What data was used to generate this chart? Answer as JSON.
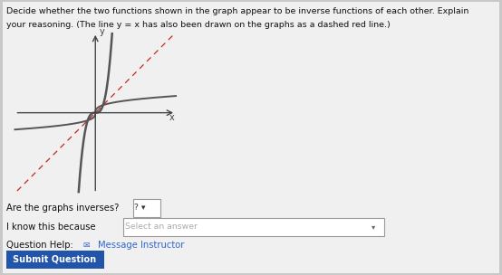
{
  "bg_color": "#c8c8c8",
  "white_area_color": "#f0f0f0",
  "title_line1": "Decide whether the two functions shown in the graph appear to be inverse functions of each other. Explain",
  "title_line2": "your reasoning. (The line y = x has also been drawn on the graphs as a dashed red line.)",
  "title_fontsize": 6.8,
  "graph_facecolor": "#d8d8d8",
  "axis_color": "#444444",
  "curve_color": "#555555",
  "dashed_color": "#cc2222",
  "question1": "Are the graphs inverses?",
  "dropdown1_text": "? ▾",
  "question2": "I know this because",
  "dropdown2_text": "Select an answer",
  "question3_text": "Question Help:",
  "message_text": "Message Instructor",
  "button_text": "Submit Question",
  "button_color": "#2255aa",
  "button_text_color": "#ffffff",
  "ui_fontsize": 7.2,
  "q_fontsize": 7.2
}
